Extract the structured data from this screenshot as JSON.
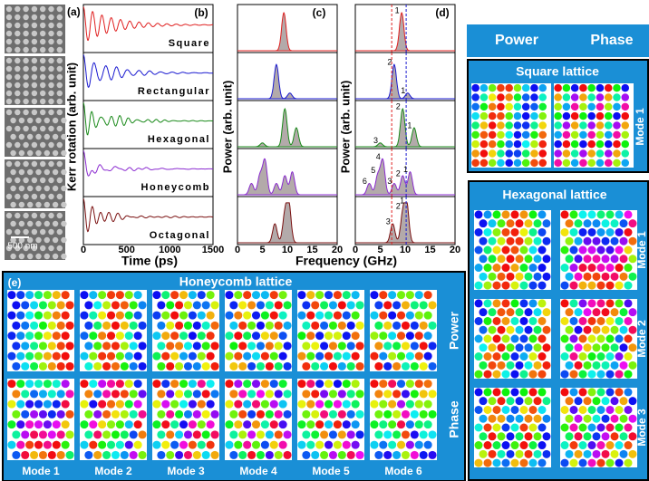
{
  "panel_labels": [
    "(a)",
    "(b)",
    "(c)",
    "(d)",
    "(e)"
  ],
  "sem_scale": "500 nm",
  "lattices": [
    {
      "name": "Square",
      "color": "#e02020",
      "peaks": [
        {
          "f": 9.3,
          "a": 1.0,
          "label": "1"
        }
      ]
    },
    {
      "name": "Rectangular",
      "color": "#1a1ad0",
      "peaks": [
        {
          "f": 7.8,
          "a": 0.9,
          "label": "2"
        },
        {
          "f": 10.5,
          "a": 0.15,
          "label": "1"
        }
      ]
    },
    {
      "name": "Hexagonal",
      "color": "#1a8a1a",
      "peaks": [
        {
          "f": 5.0,
          "a": 0.1,
          "label": "3"
        },
        {
          "f": 9.5,
          "a": 1.0,
          "label": "2"
        },
        {
          "f": 11.8,
          "a": 0.5,
          "label": "1"
        }
      ]
    },
    {
      "name": "Honeycomb",
      "color": "#8a2ad0",
      "peaks": [
        {
          "f": 2.8,
          "a": 0.3,
          "label": "6"
        },
        {
          "f": 4.5,
          "a": 0.5,
          "label": "5"
        },
        {
          "f": 5.5,
          "a": 0.9,
          "label": "4"
        },
        {
          "f": 7.8,
          "a": 0.3,
          "label": "3"
        },
        {
          "f": 9.5,
          "a": 0.5,
          "label": "2"
        },
        {
          "f": 11,
          "a": 0.6,
          "label": "1"
        }
      ]
    },
    {
      "name": "Octagonal",
      "color": "#7a1010",
      "peaks": [
        {
          "f": 7.5,
          "a": 0.5,
          "label": "3"
        },
        {
          "f": 9.5,
          "a": 0.7,
          "label": "2"
        },
        {
          "f": 10.3,
          "a": 1.0,
          "label": "1"
        }
      ]
    }
  ],
  "time_axis": {
    "label": "Time (ps)",
    "lim": [
      0,
      1500
    ],
    "ticks": [
      0,
      500,
      1000,
      1500
    ]
  },
  "kerr_label": "Kerr rotation (arb. unit)",
  "power_label": "Power (arb. unit)",
  "freq_axis": {
    "label": "Frequency (GHz)",
    "lim": [
      0,
      20
    ],
    "ticks": [
      0,
      5,
      10,
      15,
      20
    ]
  },
  "markers": [
    {
      "f": 7.3,
      "color": "#e02020"
    },
    {
      "f": 10.2,
      "color": "#1a1ad0"
    }
  ],
  "right_header": [
    "Power",
    "Phase"
  ],
  "square": {
    "title": "Square lattice",
    "modes": [
      "Mode 1"
    ]
  },
  "hexagonal": {
    "title": "Hexagonal lattice",
    "modes": [
      "Mode 1",
      "Mode 2",
      "Mode 3"
    ]
  },
  "honeycomb": {
    "title": "Honeycomb lattice",
    "rows": [
      "Power",
      "Phase"
    ],
    "modes": [
      "Mode 1",
      "Mode 2",
      "Mode 3",
      "Mode 4",
      "Mode 5",
      "Mode 6"
    ]
  }
}
